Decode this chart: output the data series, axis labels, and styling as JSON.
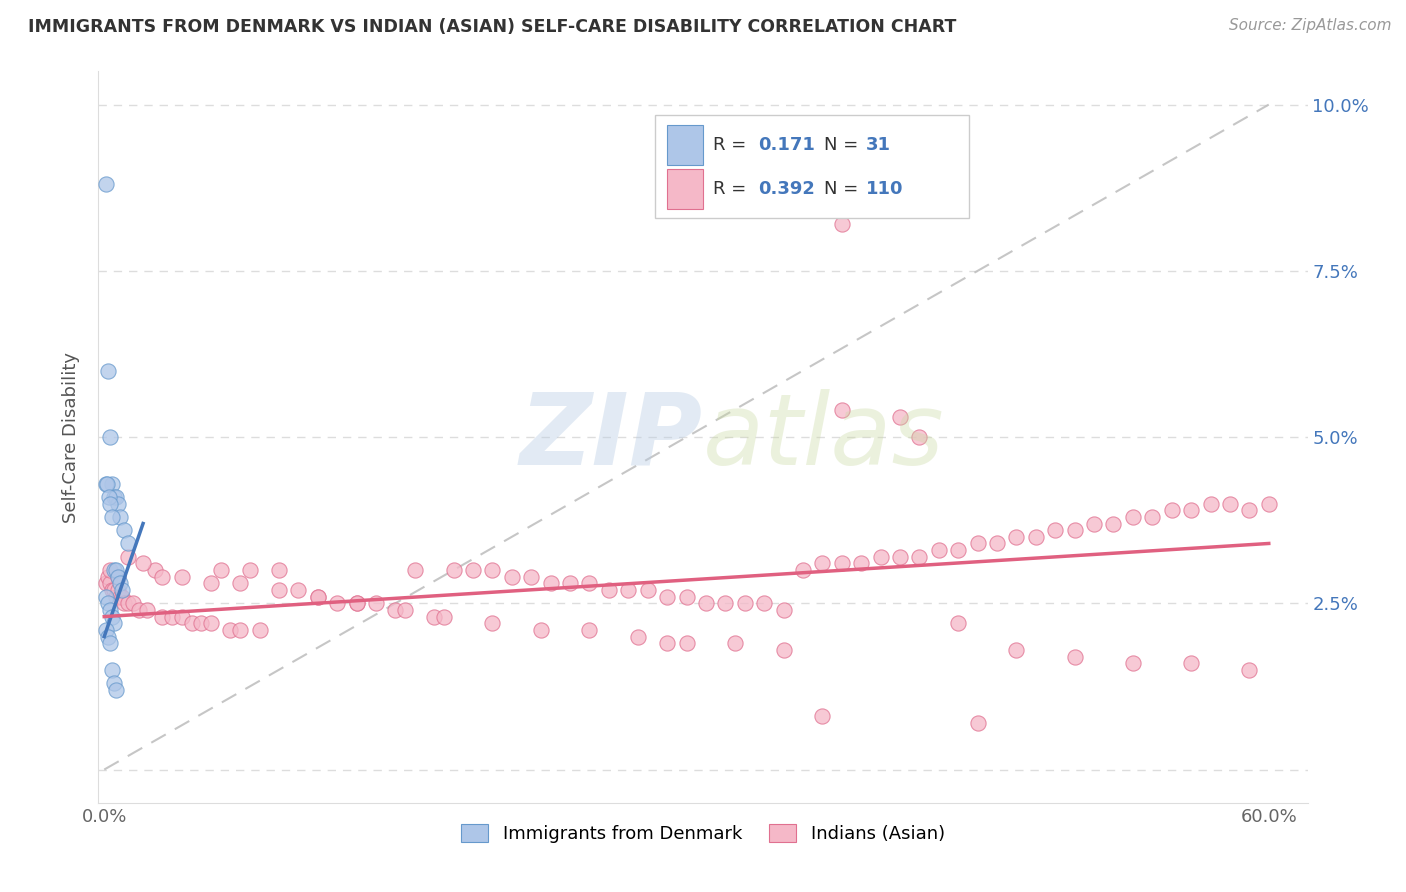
{
  "title": "IMMIGRANTS FROM DENMARK VS INDIAN (ASIAN) SELF-CARE DISABILITY CORRELATION CHART",
  "source": "Source: ZipAtlas.com",
  "ylabel": "Self-Care Disability",
  "xlim": [
    -0.003,
    0.62
  ],
  "ylim": [
    -0.005,
    0.105
  ],
  "x_tick_positions": [
    0.0,
    0.1,
    0.2,
    0.3,
    0.4,
    0.5,
    0.6
  ],
  "x_tick_labels": [
    "0.0%",
    "",
    "",
    "",
    "",
    "",
    "60.0%"
  ],
  "y_tick_positions": [
    0.0,
    0.025,
    0.05,
    0.075,
    0.1
  ],
  "y_tick_labels_right": [
    "",
    "2.5%",
    "5.0%",
    "7.5%",
    "10.0%"
  ],
  "watermark_zip": "ZIP",
  "watermark_atlas": "atlas",
  "color_denmark": "#aec6e8",
  "color_denmark_edge": "#6699cc",
  "color_india": "#f5b8c8",
  "color_india_edge": "#e07090",
  "color_denmark_line": "#4477bb",
  "color_india_line": "#e06080",
  "color_diagonal": "#c0c0c0",
  "legend_r_color": "#333333",
  "legend_val_color": "#4477bb",
  "right_axis_color": "#4477bb",
  "dk_x": [
    0.001,
    0.002,
    0.003,
    0.004,
    0.005,
    0.006,
    0.007,
    0.008,
    0.01,
    0.012,
    0.0008,
    0.0015,
    0.0025,
    0.003,
    0.004,
    0.005,
    0.006,
    0.007,
    0.008,
    0.009,
    0.001,
    0.002,
    0.003,
    0.004,
    0.005,
    0.001,
    0.002,
    0.003,
    0.004,
    0.005,
    0.006
  ],
  "dk_y": [
    0.088,
    0.06,
    0.05,
    0.043,
    0.041,
    0.041,
    0.04,
    0.038,
    0.036,
    0.034,
    0.043,
    0.043,
    0.041,
    0.04,
    0.038,
    0.03,
    0.03,
    0.029,
    0.028,
    0.027,
    0.026,
    0.025,
    0.024,
    0.023,
    0.022,
    0.021,
    0.02,
    0.019,
    0.015,
    0.013,
    0.012
  ],
  "ind_x": [
    0.001,
    0.002,
    0.003,
    0.004,
    0.005,
    0.006,
    0.007,
    0.008,
    0.009,
    0.01,
    0.012,
    0.015,
    0.018,
    0.022,
    0.026,
    0.03,
    0.035,
    0.04,
    0.045,
    0.05,
    0.055,
    0.06,
    0.065,
    0.07,
    0.075,
    0.08,
    0.09,
    0.1,
    0.11,
    0.12,
    0.13,
    0.14,
    0.15,
    0.16,
    0.17,
    0.18,
    0.19,
    0.2,
    0.21,
    0.22,
    0.23,
    0.24,
    0.25,
    0.26,
    0.27,
    0.28,
    0.29,
    0.3,
    0.31,
    0.32,
    0.33,
    0.34,
    0.35,
    0.36,
    0.37,
    0.38,
    0.39,
    0.4,
    0.41,
    0.42,
    0.43,
    0.44,
    0.45,
    0.46,
    0.47,
    0.48,
    0.49,
    0.5,
    0.51,
    0.52,
    0.53,
    0.54,
    0.55,
    0.56,
    0.57,
    0.58,
    0.59,
    0.6,
    0.003,
    0.007,
    0.012,
    0.02,
    0.03,
    0.04,
    0.055,
    0.07,
    0.09,
    0.11,
    0.13,
    0.155,
    0.175,
    0.2,
    0.225,
    0.25,
    0.275,
    0.3,
    0.325,
    0.35,
    0.38,
    0.41,
    0.44,
    0.47,
    0.5,
    0.53,
    0.56,
    0.59,
    0.38,
    0.42,
    0.29,
    0.45,
    0.37
  ],
  "ind_y": [
    0.028,
    0.029,
    0.028,
    0.027,
    0.027,
    0.026,
    0.027,
    0.026,
    0.026,
    0.025,
    0.025,
    0.025,
    0.024,
    0.024,
    0.03,
    0.023,
    0.023,
    0.023,
    0.022,
    0.022,
    0.022,
    0.03,
    0.021,
    0.021,
    0.03,
    0.021,
    0.03,
    0.027,
    0.026,
    0.025,
    0.025,
    0.025,
    0.024,
    0.03,
    0.023,
    0.03,
    0.03,
    0.03,
    0.029,
    0.029,
    0.028,
    0.028,
    0.028,
    0.027,
    0.027,
    0.027,
    0.026,
    0.026,
    0.025,
    0.025,
    0.025,
    0.025,
    0.024,
    0.03,
    0.031,
    0.031,
    0.031,
    0.032,
    0.032,
    0.032,
    0.033,
    0.033,
    0.034,
    0.034,
    0.035,
    0.035,
    0.036,
    0.036,
    0.037,
    0.037,
    0.038,
    0.038,
    0.039,
    0.039,
    0.04,
    0.04,
    0.039,
    0.04,
    0.03,
    0.029,
    0.032,
    0.031,
    0.029,
    0.029,
    0.028,
    0.028,
    0.027,
    0.026,
    0.025,
    0.024,
    0.023,
    0.022,
    0.021,
    0.021,
    0.02,
    0.019,
    0.019,
    0.018,
    0.082,
    0.053,
    0.022,
    0.018,
    0.017,
    0.016,
    0.016,
    0.015,
    0.054,
    0.05,
    0.019,
    0.007,
    0.008
  ]
}
